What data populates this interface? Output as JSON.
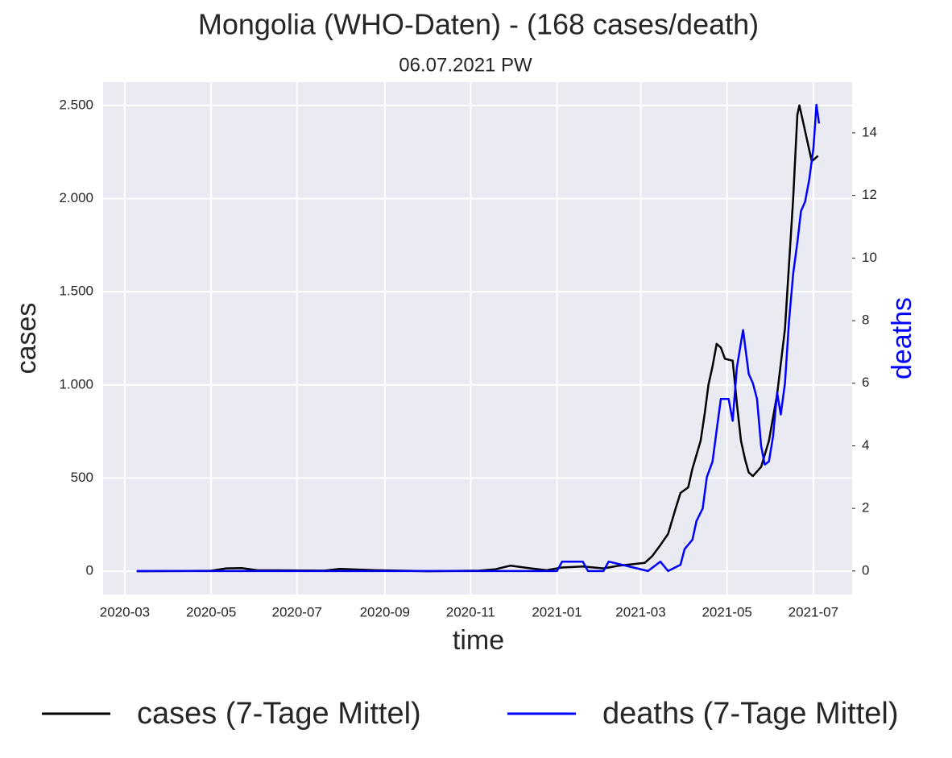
{
  "chart_data": {
    "type": "line",
    "title": "Mongolia (WHO-Daten) - (168 cases/death)",
    "subtitle": "06.07.2021 PW",
    "x_label": "time",
    "y_label": "cases",
    "y2_label": "deaths",
    "grid": true,
    "legend": "bottom",
    "xlim": [
      2020.122,
      2021.571
    ],
    "xticks": [
      {
        "value": 2020.164,
        "label": "2020-03"
      },
      {
        "value": 2020.331,
        "label": "2020-05"
      },
      {
        "value": 2020.497,
        "label": "2020-07"
      },
      {
        "value": 2020.667,
        "label": "2020-09"
      },
      {
        "value": 2020.833,
        "label": "2020-11"
      },
      {
        "value": 2021.0,
        "label": "2021-01"
      },
      {
        "value": 2021.162,
        "label": "2021-03"
      },
      {
        "value": 2021.329,
        "label": "2021-05"
      },
      {
        "value": 2021.496,
        "label": "2021-07"
      }
    ],
    "ylim": [
      -125,
      2625
    ],
    "yticks": [
      0,
      500,
      {
        "value": 1000,
        "label": "1.000"
      },
      {
        "value": 1500,
        "label": "1.500"
      },
      {
        "value": 2000,
        "label": "2.000"
      },
      {
        "value": 2500,
        "label": "2.500"
      }
    ],
    "y2lim": [
      -0.75,
      15.62
    ],
    "y2ticks": [
      0,
      2,
      4,
      6,
      8,
      10,
      12,
      14
    ],
    "series": [
      {
        "name": "cases (7-Tage Mittel)",
        "color": "#000000",
        "x": [
          2020.187,
          2020.33,
          2020.36,
          2020.39,
          2020.42,
          2020.55,
          2020.58,
          2020.65,
          2020.75,
          2020.85,
          2020.88,
          2020.91,
          2020.95,
          2020.98,
          2021.01,
          2021.05,
          2021.09,
          2021.12,
          2021.17,
          2021.184,
          2021.2,
          2021.215,
          2021.231,
          2021.239,
          2021.254,
          2021.262,
          2021.278,
          2021.286,
          2021.293,
          2021.301,
          2021.309,
          2021.317,
          2021.325,
          2021.34,
          2021.348,
          2021.356,
          2021.364,
          2021.371,
          2021.379,
          2021.395,
          2021.41,
          2021.426,
          2021.441,
          2021.457,
          2021.465,
          2021.469,
          2021.477,
          2021.485,
          2021.493,
          2021.505
        ],
        "values": [
          0,
          2,
          15,
          17,
          5,
          3,
          12,
          5,
          0,
          3,
          10,
          30,
          15,
          5,
          20,
          25,
          15,
          30,
          45,
          80,
          140,
          200,
          350,
          420,
          450,
          550,
          700,
          850,
          1000,
          1100,
          1220,
          1200,
          1140,
          1130,
          900,
          700,
          600,
          530,
          510,
          560,
          700,
          950,
          1300,
          2000,
          2450,
          2500,
          2400,
          2300,
          2200,
          2230
        ]
      },
      {
        "name": "deaths (7-Tage Mittel)",
        "color": "#0000ff",
        "axis": "y2",
        "x": [
          2020.187,
          2021.0,
          2021.01,
          2021.05,
          2021.06,
          2021.09,
          2021.1,
          2021.176,
          2021.2,
          2021.215,
          2021.239,
          2021.247,
          2021.262,
          2021.27,
          2021.282,
          2021.29,
          2021.301,
          2021.309,
          2021.317,
          2021.332,
          2021.34,
          2021.348,
          2021.356,
          2021.36,
          2021.371,
          2021.379,
          2021.387,
          2021.395,
          2021.402,
          2021.41,
          2021.418,
          2021.426,
          2021.433,
          2021.441,
          2021.449,
          2021.457,
          2021.465,
          2021.472,
          2021.48,
          2021.488,
          2021.496,
          2021.502,
          2021.507
        ],
        "values": [
          0,
          0,
          0.3,
          0.3,
          0,
          0,
          0.3,
          0,
          0.3,
          0,
          0.2,
          0.7,
          1.0,
          1.6,
          2.0,
          3.0,
          3.5,
          4.5,
          5.5,
          5.5,
          4.8,
          6.5,
          7.3,
          7.7,
          6.3,
          6.0,
          5.5,
          4.0,
          3.4,
          3.5,
          4.3,
          5.7,
          5.0,
          6.0,
          8.0,
          9.5,
          10.5,
          11.5,
          11.8,
          12.5,
          13.5,
          14.9,
          14.3
        ]
      }
    ]
  }
}
